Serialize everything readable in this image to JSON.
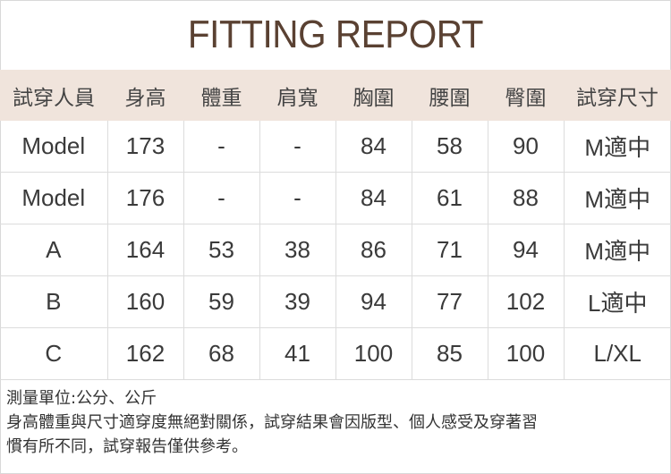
{
  "title": "FITTING REPORT",
  "headers": [
    "試穿人員",
    "身高",
    "體重",
    "肩寬",
    "胸圍",
    "腰圍",
    "臀圍",
    "試穿尺寸"
  ],
  "rows": [
    [
      "Model",
      "173",
      "-",
      "-",
      "84",
      "58",
      "90",
      "M適中"
    ],
    [
      "Model",
      "176",
      "-",
      "-",
      "84",
      "61",
      "88",
      "M適中"
    ],
    [
      "A",
      "164",
      "53",
      "38",
      "86",
      "71",
      "94",
      "M適中"
    ],
    [
      "B",
      "160",
      "59",
      "39",
      "94",
      "77",
      "102",
      "L適中"
    ],
    [
      "C",
      "162",
      "68",
      "41",
      "100",
      "85",
      "100",
      "L/XL"
    ]
  ],
  "notes": [
    "測量單位:公分、公斤",
    "身高體重與尺寸適穿度無絕對關係，試穿結果會因版型、個人感受及穿著習",
    "慣有所不同，試穿報告僅供參考。"
  ],
  "colors": {
    "title": "#5a4132",
    "header_bg": "#f0e4dc"
  }
}
